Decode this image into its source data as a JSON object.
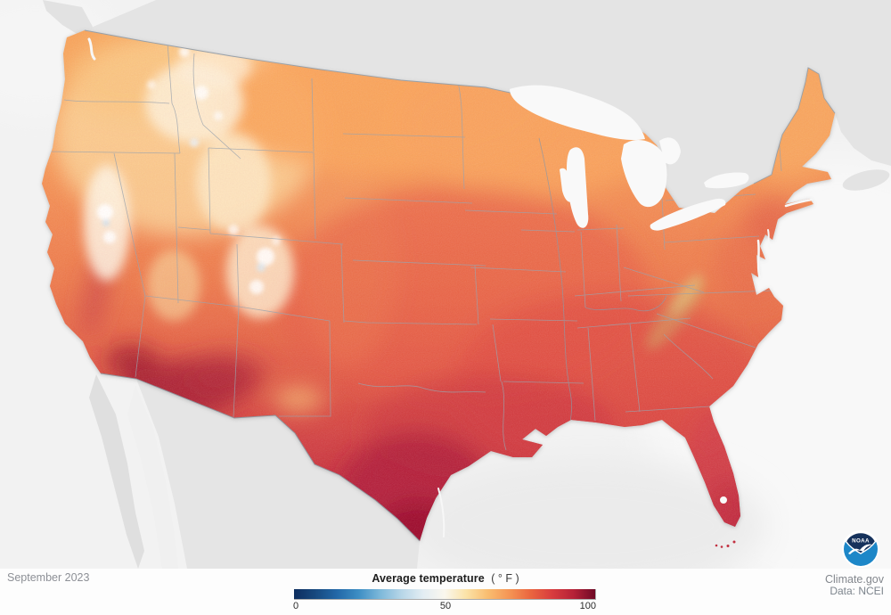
{
  "map": {
    "region_label": "Average temperature map of the contiguous United States"
  },
  "footer": {
    "date_label": "September 2023"
  },
  "credits": {
    "site": "Climate.gov",
    "data_source": "Data: NCEI"
  },
  "legend": {
    "title": "Average temperature",
    "units": "( ° F )",
    "tick_min": "0",
    "tick_mid": "50",
    "tick_max": "100",
    "gradient": [
      "#0d2d5e",
      "#17497f",
      "#2268a8",
      "#3d8ec4",
      "#7db8da",
      "#b7d6e8",
      "#e3edf3",
      "#faf7ee",
      "#fbe3a8",
      "#f9bd70",
      "#f59555",
      "#ea653f",
      "#d83c3e",
      "#b52137",
      "#6f0a26"
    ]
  },
  "logo": {
    "noaa_label": "NOAA"
  },
  "colors": {
    "canada_gray": "#e4e4e4",
    "mexico_gray": "#e5e5e5",
    "lake_white": "#f9f9f9",
    "hot_crimson": "#950f2e",
    "warm_orange": "#f7a55b"
  }
}
